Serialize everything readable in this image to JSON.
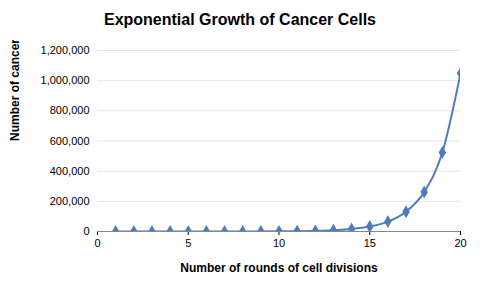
{
  "chart_data": {
    "type": "line",
    "title": "Exponential Growth of Cancer Cells",
    "x_label": "Number of rounds of cell divisions",
    "y_label": "Number of cancer cells",
    "x": [
      1,
      2,
      3,
      4,
      5,
      6,
      7,
      8,
      9,
      10,
      11,
      12,
      13,
      14,
      15,
      16,
      17,
      18,
      19,
      20
    ],
    "values": [
      2,
      4,
      8,
      16,
      32,
      64,
      128,
      256,
      512,
      1024,
      2048,
      4096,
      8192,
      16384,
      32768,
      65536,
      131072,
      262144,
      524288,
      1048576
    ],
    "color": "#4a7ebb",
    "marker": "diamond",
    "line_style": "solid",
    "xlim": [
      0,
      20
    ],
    "xticks": [
      0,
      5,
      10,
      15,
      20
    ],
    "ylim": [
      0,
      1200000
    ],
    "yticks": [
      0,
      {
        "value": 200000,
        "label": "200,000"
      },
      {
        "value": 400000,
        "label": "400,000"
      },
      {
        "value": 600000,
        "label": "600,000"
      },
      {
        "value": 800000,
        "label": "800,000"
      },
      {
        "value": 1000000,
        "label": "1,000,000"
      },
      {
        "value": 1200000,
        "label": "1,200,000"
      }
    ],
    "grid": true
  }
}
